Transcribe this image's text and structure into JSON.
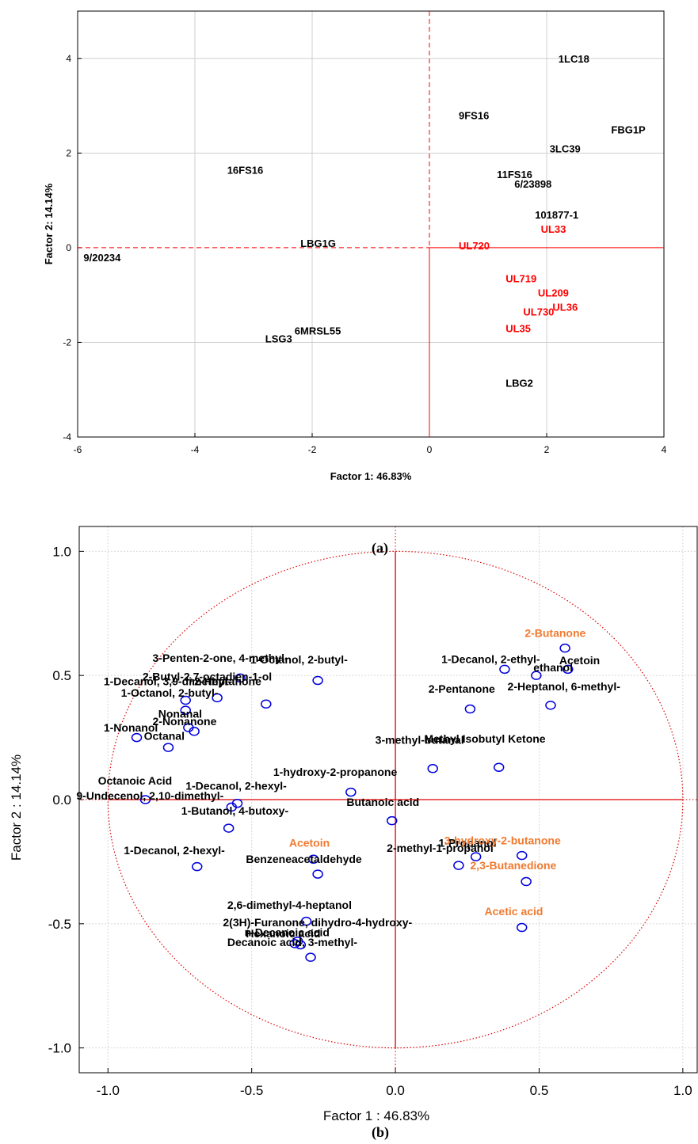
{
  "captions": {
    "a": "(a)",
    "b": "(b)"
  },
  "chart_data": [
    {
      "type": "scatter",
      "title": "",
      "xlabel": "Factor 1: 46.83%",
      "ylabel": "Factor 2: 14.14%",
      "xlim": [
        -6,
        4
      ],
      "ylim": [
        -4,
        5
      ],
      "x_ticks": [
        -6,
        -4,
        -2,
        0,
        2,
        4
      ],
      "y_ticks": [
        -4,
        -2,
        0,
        2,
        4
      ],
      "grid": true,
      "colors": {
        "black": "#000000",
        "highlight": "#ff0000",
        "axis_line": "#ff0000"
      },
      "points": [
        {
          "label": "1LC18",
          "x": 2.2,
          "y": 4.0,
          "color": "black"
        },
        {
          "label": "9FS16",
          "x": 0.5,
          "y": 2.8,
          "color": "black"
        },
        {
          "label": "FBG1P",
          "x": 3.1,
          "y": 2.5,
          "color": "black"
        },
        {
          "label": "3LC39",
          "x": 2.05,
          "y": 2.1,
          "color": "black"
        },
        {
          "label": "16FS16",
          "x": -3.45,
          "y": 1.65,
          "color": "black"
        },
        {
          "label": "11FS16",
          "x": 1.15,
          "y": 1.55,
          "color": "black"
        },
        {
          "label": "6/23898",
          "x": 1.45,
          "y": 1.35,
          "color": "black"
        },
        {
          "label": "101877-1",
          "x": 1.8,
          "y": 0.7,
          "color": "black"
        },
        {
          "label": "UL33",
          "x": 1.9,
          "y": 0.4,
          "color": "highlight"
        },
        {
          "label": "9/20234",
          "x": -5.9,
          "y": -0.2,
          "color": "black"
        },
        {
          "label": "LBG1G",
          "x": -2.2,
          "y": 0.1,
          "color": "black"
        },
        {
          "label": "UL720",
          "x": 0.5,
          "y": 0.05,
          "color": "highlight"
        },
        {
          "label": "UL719",
          "x": 1.3,
          "y": -0.65,
          "color": "highlight"
        },
        {
          "label": "UL209",
          "x": 1.85,
          "y": -0.95,
          "color": "highlight"
        },
        {
          "label": "UL36",
          "x": 2.1,
          "y": -1.25,
          "color": "highlight"
        },
        {
          "label": "UL730",
          "x": 1.6,
          "y": -1.35,
          "color": "highlight"
        },
        {
          "label": "UL35",
          "x": 1.3,
          "y": -1.7,
          "color": "highlight"
        },
        {
          "label": "6MRSL55",
          "x": -2.3,
          "y": -1.75,
          "color": "black"
        },
        {
          "label": "LSG3",
          "x": -2.8,
          "y": -1.92,
          "color": "black"
        },
        {
          "label": "LBG2",
          "x": 1.3,
          "y": -2.85,
          "color": "black"
        }
      ]
    },
    {
      "type": "scatter",
      "title": "",
      "xlabel": "Factor 1 : 46.83%",
      "ylabel": "Factor 2 : 14.14%",
      "xlim": [
        -1.1,
        1.05
      ],
      "ylim": [
        -1.1,
        1.1
      ],
      "x_ticks": [
        -1.0,
        -0.5,
        0.0,
        0.5,
        1.0
      ],
      "y_ticks": [
        -1.0,
        -0.5,
        0.0,
        0.5,
        1.0
      ],
      "tick_labels": [
        "-1.0",
        "-0.5",
        "0.0",
        "0.5",
        "1.0"
      ],
      "grid": true,
      "unit_circle": true,
      "colors": {
        "black": "#000000",
        "highlight": "#f07a30",
        "marker": "#0000dd",
        "circle": "#dd0000",
        "axis_line": "#dd0000"
      },
      "points": [
        {
          "label": "2-Butanone",
          "x": 0.59,
          "y": 0.61,
          "color": "highlight",
          "lx": 0.45,
          "ly": 0.655
        },
        {
          "label": "Acetoin",
          "x": 0.6,
          "y": 0.525,
          "color": "black",
          "lx": 0.57,
          "ly": 0.545
        },
        {
          "label": "1-Decanol, 2-ethyl-",
          "x": 0.38,
          "y": 0.525,
          "color": "black",
          "lx": 0.16,
          "ly": 0.55
        },
        {
          "label": "ethanol",
          "x": 0.49,
          "y": 0.5,
          "color": "black",
          "lx": 0.48,
          "ly": 0.517
        },
        {
          "label": "2-Heptanol, 6-methyl-",
          "x": 0.54,
          "y": 0.38,
          "color": "black",
          "lx": 0.39,
          "ly": 0.44
        },
        {
          "label": "2-Pentanone",
          "x": 0.26,
          "y": 0.365,
          "color": "black",
          "lx": 0.115,
          "ly": 0.43
        },
        {
          "label": "3-methyl-butanal",
          "x": 0.13,
          "y": 0.125,
          "color": "black",
          "lx": -0.07,
          "ly": 0.225
        },
        {
          "label": "Methyl Isobutyl Ketone",
          "x": 0.36,
          "y": 0.13,
          "color": "black",
          "lx": 0.1,
          "ly": 0.23
        },
        {
          "label": "1-hydroxy-2-propanone",
          "x": -0.155,
          "y": 0.03,
          "color": "black",
          "lx": -0.425,
          "ly": 0.095
        },
        {
          "label": "Butanoic acid",
          "x": -0.012,
          "y": -0.085,
          "color": "black",
          "lx": -0.17,
          "ly": -0.025
        },
        {
          "label": "3-Penten-2-one, 4-methyl-",
          "x": -0.54,
          "y": 0.49,
          "color": "black",
          "lx": -0.845,
          "ly": 0.555
        },
        {
          "label": "1-Octanol, 2-butyl-",
          "x": -0.27,
          "y": 0.48,
          "color": "black",
          "lx": -0.505,
          "ly": 0.548
        },
        {
          "label": "2-Butyl-2,7-octadien-1-ol",
          "x": -0.62,
          "y": 0.41,
          "color": "black",
          "lx": -0.88,
          "ly": 0.48
        },
        {
          "label": "1-Decanol, 3,9-dimethyl-",
          "x": -0.73,
          "y": 0.4,
          "color": "black",
          "lx": -1.015,
          "ly": 0.46
        },
        {
          "label": "2-Heptanone",
          "x": -0.45,
          "y": 0.385,
          "color": "black",
          "lx": -0.7,
          "ly": 0.46
        },
        {
          "label": "1-Octanol, 2-butyl-",
          "x": -0.73,
          "y": 0.36,
          "color": "black",
          "lx": -0.955,
          "ly": 0.415
        },
        {
          "label": "Nonanal",
          "x": -0.72,
          "y": 0.29,
          "color": "black",
          "lx": -0.825,
          "ly": 0.33
        },
        {
          "label": "2-Nonanone",
          "x": -0.7,
          "y": 0.275,
          "color": "black",
          "lx": -0.845,
          "ly": 0.3
        },
        {
          "label": "1-Nonanol",
          "x": -0.9,
          "y": 0.25,
          "color": "black",
          "lx": -1.015,
          "ly": 0.275
        },
        {
          "label": "Octanal",
          "x": -0.79,
          "y": 0.21,
          "color": "black",
          "lx": -0.875,
          "ly": 0.24
        },
        {
          "label": "Octanoic Acid",
          "x": -0.87,
          "y": 0.0,
          "color": "black",
          "lx": -1.035,
          "ly": 0.06
        },
        {
          "label": "9-Undecenol, 2,10-dimethyl-",
          "x": -0.55,
          "y": -0.015,
          "color": "black",
          "lx": -1.11,
          "ly": 0.0
        },
        {
          "label": "1-Decanol, 2-hexyl-",
          "x": -0.57,
          "y": -0.03,
          "color": "black",
          "lx": -0.73,
          "ly": 0.04
        },
        {
          "label": "1-Butanol, 4-butoxy-",
          "x": -0.58,
          "y": -0.115,
          "color": "black",
          "lx": -0.745,
          "ly": -0.06
        },
        {
          "label": "1-Decanol, 2-hexyl-",
          "x": -0.69,
          "y": -0.27,
          "color": "black",
          "lx": -0.945,
          "ly": -0.22
        },
        {
          "label": "Acetoin",
          "x": -0.285,
          "y": -0.24,
          "color": "highlight",
          "lx": -0.37,
          "ly": -0.19
        },
        {
          "label": "Benzeneacetaldehyde",
          "x": -0.27,
          "y": -0.3,
          "color": "black",
          "lx": -0.52,
          "ly": -0.255
        },
        {
          "label": "2-methyl-1-propanol",
          "x": 0.22,
          "y": -0.265,
          "color": "black",
          "lx": -0.03,
          "ly": -0.21
        },
        {
          "label": "1-Propanol",
          "x": 0.28,
          "y": -0.23,
          "color": "black",
          "lx": 0.15,
          "ly": -0.19
        },
        {
          "label": "3-hydroxy-2-butanone",
          "x": 0.44,
          "y": -0.225,
          "color": "highlight",
          "lx": 0.17,
          "ly": -0.18
        },
        {
          "label": "2,3-Butanedione",
          "x": 0.455,
          "y": -0.33,
          "color": "highlight",
          "lx": 0.26,
          "ly": -0.28
        },
        {
          "label": "2,6-dimethyl-4-heptanol",
          "x": -0.31,
          "y": -0.49,
          "color": "black",
          "lx": -0.585,
          "ly": -0.44
        },
        {
          "label": "2(3H)-Furanone, dihydro-4-hydroxy-",
          "x": -0.34,
          "y": -0.57,
          "color": "black",
          "lx": -0.6,
          "ly": -0.51
        },
        {
          "label": "Acetic acid",
          "x": 0.44,
          "y": -0.515,
          "color": "highlight",
          "lx": 0.31,
          "ly": -0.465
        },
        {
          "label": "n-Decanoic acid",
          "x": -0.33,
          "y": -0.585,
          "color": "black",
          "lx": -0.525,
          "ly": -0.55
        },
        {
          "label": "Hexanoic acid",
          "x": -0.35,
          "y": -0.58,
          "color": "black",
          "lx": -0.52,
          "ly": -0.555
        },
        {
          "label": "Decanoic acid, 3-methyl-",
          "x": -0.295,
          "y": -0.635,
          "color": "black",
          "lx": -0.585,
          "ly": -0.59
        }
      ]
    }
  ]
}
